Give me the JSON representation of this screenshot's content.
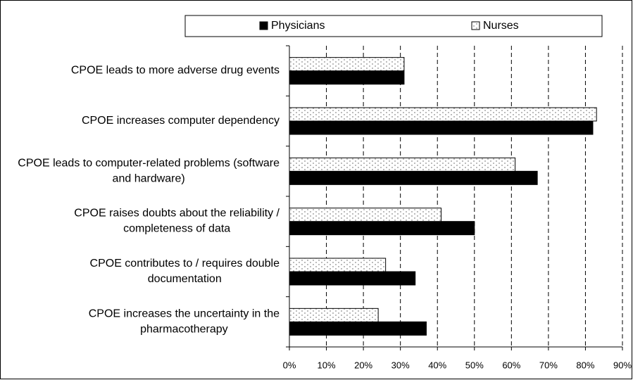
{
  "chart_data": {
    "type": "bar",
    "orientation": "horizontal",
    "categories": [
      "CPOE leads to more adverse drug events",
      "CPOE increases computer dependency",
      "CPOE leads to computer-related problems (software and hardware)",
      "CPOE raises doubts about the reliability / completeness of data",
      "CPOE contributes to / requires double documentation",
      "CPOE increases the uncertainty in the pharmacotherapy"
    ],
    "series": [
      {
        "name": "Physicians",
        "color": "#000000",
        "values": [
          31,
          82,
          67,
          50,
          34,
          37
        ]
      },
      {
        "name": "Nurses",
        "color": "#ffffff",
        "pattern": "dotted",
        "values": [
          31,
          83,
          61,
          41,
          26,
          24
        ]
      }
    ],
    "xlim": [
      0,
      90
    ],
    "xticks": [
      {
        "value": 0,
        "label": "0%"
      },
      {
        "value": 10,
        "label": "10%"
      },
      {
        "value": 20,
        "label": "20%"
      },
      {
        "value": 30,
        "label": "30%"
      },
      {
        "value": 40,
        "label": "40%"
      },
      {
        "value": 50,
        "label": "50%"
      },
      {
        "value": 60,
        "label": "60%"
      },
      {
        "value": 70,
        "label": "70%"
      },
      {
        "value": 80,
        "label": "80%"
      },
      {
        "value": 90,
        "label": "90%"
      }
    ],
    "grid": true,
    "legend": "top"
  }
}
